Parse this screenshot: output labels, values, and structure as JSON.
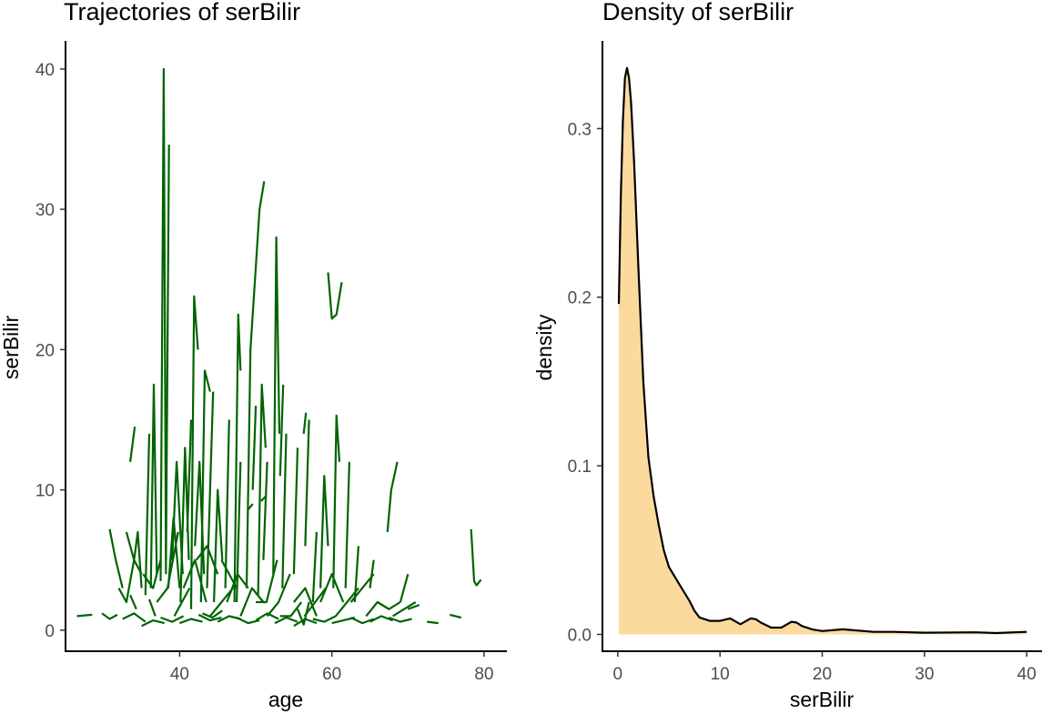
{
  "colors": {
    "trajectory": "#006400",
    "density_fill": "#FCDA9E",
    "density_line": "#000000",
    "axis": "#000000",
    "tick_text": "#4d4d4d"
  },
  "chart_data": [
    {
      "type": "line",
      "title": "Trajectories of serBilir",
      "xlabel": "age",
      "ylabel": "serBilir",
      "xlim": [
        25,
        83
      ],
      "ylim": [
        -1.5,
        42
      ],
      "xticks": [
        40,
        60,
        80
      ],
      "yticks": [
        0,
        10,
        20,
        30,
        40
      ],
      "series": [
        {
          "name": "s1",
          "x": [
            37.5,
            37.9,
            38.2
          ],
          "y": [
            3.5,
            40,
            4
          ]
        },
        {
          "name": "s2",
          "x": [
            38.2,
            38.6
          ],
          "y": [
            5,
            34.6
          ]
        },
        {
          "name": "s3",
          "x": [
            36.2,
            36.6,
            37.0
          ],
          "y": [
            3,
            17.5,
            4
          ]
        },
        {
          "name": "s4",
          "x": [
            35.5,
            36.0
          ],
          "y": [
            2.5,
            14
          ]
        },
        {
          "name": "s5",
          "x": [
            41.5,
            41.9,
            42.4
          ],
          "y": [
            1.5,
            23.8,
            20
          ]
        },
        {
          "name": "s6",
          "x": [
            42.8,
            43.3,
            44.0
          ],
          "y": [
            2,
            18.5,
            17
          ]
        },
        {
          "name": "s7",
          "x": [
            43.6,
            44.4
          ],
          "y": [
            3,
            17
          ]
        },
        {
          "name": "s8",
          "x": [
            47.2,
            47.7,
            48.0
          ],
          "y": [
            2,
            22.5,
            18.5
          ]
        },
        {
          "name": "s9",
          "x": [
            48.8,
            49.3,
            50.5
          ],
          "y": [
            3,
            20,
            30
          ]
        },
        {
          "name": "s10",
          "x": [
            50.5,
            51.1
          ],
          "y": [
            30,
            32
          ]
        },
        {
          "name": "s11",
          "x": [
            50.3,
            50.8,
            51.3
          ],
          "y": [
            2.5,
            17.5,
            13
          ]
        },
        {
          "name": "s12",
          "x": [
            52.3,
            52.7,
            53.1
          ],
          "y": [
            4,
            28,
            14
          ]
        },
        {
          "name": "s13",
          "x": [
            53.2,
            53.6
          ],
          "y": [
            11,
            17.5
          ]
        },
        {
          "name": "s14",
          "x": [
            59.5,
            60.0,
            60.6,
            61.3
          ],
          "y": [
            25.5,
            22.2,
            22.5,
            24.8
          ]
        },
        {
          "name": "s15",
          "x": [
            60.2,
            60.6,
            61.0
          ],
          "y": [
            3,
            15.3,
            12
          ]
        },
        {
          "name": "s16",
          "x": [
            56.3,
            56.6
          ],
          "y": [
            14,
            15.5
          ]
        },
        {
          "name": "s17",
          "x": [
            33.5,
            34.1
          ],
          "y": [
            12,
            14.5
          ]
        },
        {
          "name": "s18",
          "x": [
            30.8,
            31.6,
            32.5
          ],
          "y": [
            7.2,
            5,
            3
          ]
        },
        {
          "name": "s19",
          "x": [
            32.0,
            33.0,
            34.0
          ],
          "y": [
            3,
            2,
            5
          ]
        },
        {
          "name": "s20",
          "x": [
            34.0,
            34.5,
            35.0
          ],
          "y": [
            5,
            7,
            3
          ]
        },
        {
          "name": "s21",
          "x": [
            38.5,
            39.2,
            40.0
          ],
          "y": [
            3,
            8,
            3
          ]
        },
        {
          "name": "s22",
          "x": [
            39.0,
            39.6,
            40.4
          ],
          "y": [
            5,
            12,
            4
          ]
        },
        {
          "name": "s23",
          "x": [
            40.1,
            40.7,
            41.2
          ],
          "y": [
            2,
            13,
            5
          ]
        },
        {
          "name": "s24",
          "x": [
            41.0,
            41.5
          ],
          "y": [
            7,
            15
          ]
        },
        {
          "name": "s25",
          "x": [
            42.0,
            42.6,
            43.2
          ],
          "y": [
            6,
            12,
            4
          ]
        },
        {
          "name": "s26",
          "x": [
            44.5,
            45.0,
            45.6
          ],
          "y": [
            2,
            10,
            5
          ]
        },
        {
          "name": "s27",
          "x": [
            46.0,
            46.5
          ],
          "y": [
            3,
            15
          ]
        },
        {
          "name": "s28",
          "x": [
            47.5,
            48.0
          ],
          "y": [
            2,
            12
          ]
        },
        {
          "name": "s29",
          "x": [
            49.6,
            50.0
          ],
          "y": [
            10,
            16
          ]
        },
        {
          "name": "s30",
          "x": [
            51.0,
            51.5
          ],
          "y": [
            5,
            12
          ]
        },
        {
          "name": "s31",
          "x": [
            53.5,
            54.0
          ],
          "y": [
            3,
            14
          ]
        },
        {
          "name": "s32",
          "x": [
            55.0,
            55.5
          ],
          "y": [
            4,
            13
          ]
        },
        {
          "name": "s33",
          "x": [
            56.5,
            57.0
          ],
          "y": [
            6,
            15
          ]
        },
        {
          "name": "s34",
          "x": [
            57.5,
            58.0
          ],
          "y": [
            2,
            7
          ]
        },
        {
          "name": "s35",
          "x": [
            58.5,
            59.0,
            59.5
          ],
          "y": [
            3,
            11,
            6
          ]
        },
        {
          "name": "s36",
          "x": [
            61.8,
            62.3
          ],
          "y": [
            3,
            12
          ]
        },
        {
          "name": "s37",
          "x": [
            63.0,
            63.5
          ],
          "y": [
            2,
            6
          ]
        },
        {
          "name": "s38",
          "x": [
            65.0,
            65.5
          ],
          "y": [
            3,
            5
          ]
        },
        {
          "name": "s39",
          "x": [
            67.3,
            67.8,
            68.6
          ],
          "y": [
            7,
            10,
            12
          ]
        },
        {
          "name": "s40",
          "x": [
            69.0,
            70.0
          ],
          "y": [
            2,
            4
          ]
        },
        {
          "name": "s41",
          "x": [
            78.3,
            78.7,
            79.0,
            79.6
          ],
          "y": [
            7.2,
            3.5,
            3.2,
            3.6
          ]
        },
        {
          "name": "s42",
          "x": [
            33.0,
            34.0,
            35.0
          ],
          "y": [
            7,
            5,
            4
          ]
        },
        {
          "name": "s43",
          "x": [
            35.2,
            36.5,
            37.5
          ],
          "y": [
            4,
            3,
            5
          ]
        },
        {
          "name": "s44",
          "x": [
            37.0,
            38.4,
            39.8
          ],
          "y": [
            2,
            3,
            7
          ]
        },
        {
          "name": "s45",
          "x": [
            39.3,
            40.3,
            41.3
          ],
          "y": [
            1,
            2,
            3
          ]
        },
        {
          "name": "s46",
          "x": [
            40.5,
            42.0,
            43.5
          ],
          "y": [
            3,
            5,
            2
          ]
        },
        {
          "name": "s47",
          "x": [
            42.2,
            43.6,
            45.0
          ],
          "y": [
            5,
            6,
            4
          ]
        },
        {
          "name": "s48",
          "x": [
            44.0,
            45.5,
            47.0
          ],
          "y": [
            1,
            2,
            3
          ]
        },
        {
          "name": "s49",
          "x": [
            46.2,
            47.6,
            49.0
          ],
          "y": [
            2,
            4,
            3
          ]
        },
        {
          "name": "s50",
          "x": [
            48.0,
            49.5,
            51.0
          ],
          "y": [
            1,
            3,
            2
          ]
        },
        {
          "name": "s51",
          "x": [
            50.0,
            51.4,
            52.8
          ],
          "y": [
            2,
            2,
            5
          ]
        },
        {
          "name": "s52",
          "x": [
            51.5,
            53.0,
            54.5
          ],
          "y": [
            1,
            2,
            4
          ]
        },
        {
          "name": "s53",
          "x": [
            53.2,
            54.6,
            56.0
          ],
          "y": [
            1,
            1,
            2
          ]
        },
        {
          "name": "s54",
          "x": [
            55.0,
            56.5,
            58.0
          ],
          "y": [
            2,
            3,
            1
          ]
        },
        {
          "name": "s55",
          "x": [
            56.4,
            57.8,
            59.2
          ],
          "y": [
            1,
            2,
            3
          ]
        },
        {
          "name": "s56",
          "x": [
            58.5,
            60.0,
            61.5
          ],
          "y": [
            2,
            4,
            2
          ]
        },
        {
          "name": "s57",
          "x": [
            60.5,
            62.0,
            63.5
          ],
          "y": [
            1,
            2,
            3
          ]
        },
        {
          "name": "s58",
          "x": [
            62.5,
            64.0,
            65.5
          ],
          "y": [
            2,
            3,
            4
          ]
        },
        {
          "name": "s59",
          "x": [
            64.5,
            66.0,
            67.5
          ],
          "y": [
            1,
            2,
            1.5
          ]
        },
        {
          "name": "s60",
          "x": [
            66.0,
            67.5,
            69.0
          ],
          "y": [
            2,
            1.5,
            2
          ]
        },
        {
          "name": "s61",
          "x": [
            68.0,
            69.5,
            71.0
          ],
          "y": [
            1,
            1.5,
            2
          ]
        },
        {
          "name": "s62",
          "x": [
            26.5,
            28.5
          ],
          "y": [
            1.0,
            1.1
          ]
        },
        {
          "name": "s63",
          "x": [
            29.8,
            30.8,
            31.8
          ],
          "y": [
            1.2,
            0.8,
            1.1
          ]
        },
        {
          "name": "s64",
          "x": [
            32.5,
            34.0,
            35.5
          ],
          "y": [
            0.8,
            1.2,
            0.6
          ]
        },
        {
          "name": "s65",
          "x": [
            35.0,
            36.5,
            38.0
          ],
          "y": [
            0.3,
            0.7,
            0.5
          ]
        },
        {
          "name": "s66",
          "x": [
            37.5,
            39.0,
            40.5
          ],
          "y": [
            0.9,
            0.6,
            1.0
          ]
        },
        {
          "name": "s67",
          "x": [
            40.0,
            41.5,
            43.0
          ],
          "y": [
            0.5,
            0.8,
            0.6
          ]
        },
        {
          "name": "s68",
          "x": [
            42.5,
            44.0,
            45.5
          ],
          "y": [
            1.1,
            0.7,
            0.9
          ]
        },
        {
          "name": "s69",
          "x": [
            45.0,
            46.5,
            48.0
          ],
          "y": [
            0.6,
            1.0,
            0.8
          ]
        },
        {
          "name": "s70",
          "x": [
            47.5,
            49.0,
            50.5
          ],
          "y": [
            0.9,
            0.5,
            0.7
          ]
        },
        {
          "name": "s71",
          "x": [
            50.0,
            51.5,
            53.0
          ],
          "y": [
            0.7,
            1.2,
            0.8
          ]
        },
        {
          "name": "s72",
          "x": [
            52.5,
            54.0,
            55.5
          ],
          "y": [
            0.5,
            0.9,
            0.6
          ]
        },
        {
          "name": "s73",
          "x": [
            55.0,
            56.5,
            58.0
          ],
          "y": [
            0.3,
            0.8,
            0.5
          ]
        },
        {
          "name": "s74",
          "x": [
            57.5,
            59.0,
            60.5
          ],
          "y": [
            0.8,
            0.6,
            1.0
          ]
        },
        {
          "name": "s75",
          "x": [
            60.0,
            61.5,
            63.0
          ],
          "y": [
            0.5,
            0.7,
            0.9
          ]
        },
        {
          "name": "s76",
          "x": [
            62.5,
            64.0,
            65.5
          ],
          "y": [
            0.9,
            0.5,
            0.8
          ]
        },
        {
          "name": "s77",
          "x": [
            65.0,
            66.5,
            68.0
          ],
          "y": [
            0.6,
            1.0,
            0.7
          ]
        },
        {
          "name": "s78",
          "x": [
            67.5,
            69.0,
            70.5
          ],
          "y": [
            0.9,
            0.6,
            0.8
          ]
        },
        {
          "name": "s79",
          "x": [
            70.0,
            71.5
          ],
          "y": [
            1.5,
            1.8
          ]
        },
        {
          "name": "s80",
          "x": [
            72.5,
            74.0
          ],
          "y": [
            0.6,
            0.5
          ]
        },
        {
          "name": "s81",
          "x": [
            75.5,
            77.0
          ],
          "y": [
            1.1,
            0.9
          ]
        },
        {
          "name": "s82",
          "x": [
            55.5,
            56.3,
            57.0
          ],
          "y": [
            1.5,
            0.4,
            2.0
          ]
        },
        {
          "name": "s83",
          "x": [
            43.0,
            44.3,
            45.6
          ],
          "y": [
            1.2,
            0.9,
            1.4
          ]
        },
        {
          "name": "s84",
          "x": [
            33.5,
            34.3
          ],
          "y": [
            2.5,
            1.5
          ]
        },
        {
          "name": "s85",
          "x": [
            36.0,
            36.8
          ],
          "y": [
            2.2,
            1.0
          ]
        },
        {
          "name": "s86",
          "x": [
            45.5,
            46.5,
            47.5
          ],
          "y": [
            5,
            4,
            3
          ]
        },
        {
          "name": "s87",
          "x": [
            49.0,
            49.6
          ],
          "y": [
            8.6,
            9.0
          ]
        },
        {
          "name": "s88",
          "x": [
            50.7,
            51.4
          ],
          "y": [
            9.2,
            9.6
          ]
        }
      ]
    },
    {
      "type": "area",
      "title": "Density of serBilir",
      "xlabel": "serBilir",
      "ylabel": "density",
      "xlim": [
        -1.5,
        41.5
      ],
      "ylim": [
        -0.01,
        0.352
      ],
      "xticks": [
        0,
        10,
        20,
        30,
        40
      ],
      "yticks": [
        0.0,
        0.1,
        0.2,
        0.3
      ],
      "ytick_labels": [
        "0.0",
        "0.1",
        "0.2",
        "0.3"
      ],
      "x": [
        0.1,
        0.3,
        0.5,
        0.7,
        0.9,
        1.1,
        1.3,
        1.6,
        2.0,
        2.5,
        3.0,
        3.5,
        4.0,
        4.5,
        5.0,
        6.0,
        7.0,
        7.5,
        8.0,
        9.0,
        10.0,
        11.0,
        12.0,
        13.0,
        13.5,
        14.0,
        15.0,
        16.0,
        17.0,
        17.5,
        18.0,
        19.0,
        20.0,
        22.0,
        25.0,
        27.0,
        30.0,
        35.0,
        37.0,
        40.0
      ],
      "y": [
        0.196,
        0.26,
        0.305,
        0.33,
        0.336,
        0.33,
        0.315,
        0.28,
        0.22,
        0.15,
        0.105,
        0.082,
        0.065,
        0.05,
        0.04,
        0.03,
        0.02,
        0.014,
        0.01,
        0.008,
        0.008,
        0.0095,
        0.006,
        0.0095,
        0.009,
        0.007,
        0.004,
        0.004,
        0.0075,
        0.007,
        0.005,
        0.003,
        0.002,
        0.003,
        0.0015,
        0.0015,
        0.001,
        0.0012,
        0.0008,
        0.0015
      ]
    }
  ]
}
